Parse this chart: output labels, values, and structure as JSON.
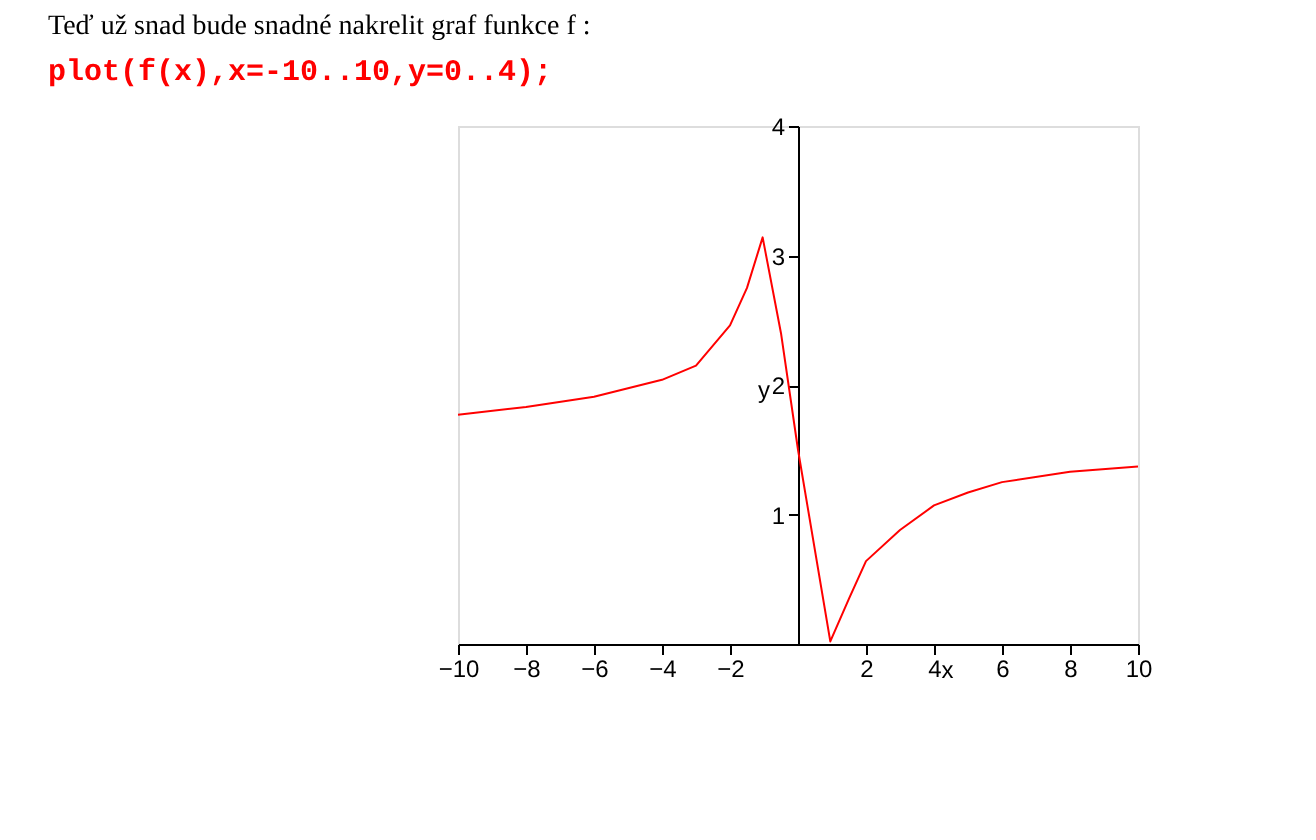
{
  "chart_data": {
    "type": "line",
    "title": "Teď už snad bude snadné nakrelit graf funkce f :",
    "subtitle": "plot(f(x),x=-10..10,y=0..4);",
    "xlabel": "x",
    "ylabel": "y",
    "series": [
      {
        "color": "#ff0000",
        "x": [
          -10,
          -8,
          -6,
          -4,
          -3,
          -2,
          -1.5,
          -1.04,
          -0.5,
          0,
          0.95,
          1.5,
          2,
          3,
          4,
          5,
          6,
          8,
          10
        ],
        "values": [
          1.77,
          1.83,
          1.91,
          2.04,
          2.15,
          2.46,
          2.75,
          3.14,
          2.4,
          1.5,
          0.02,
          0.35,
          0.64,
          0.88,
          1.07,
          1.17,
          1.25,
          1.33,
          1.37
        ]
      }
    ],
    "xlim": [
      -10,
      10
    ],
    "ylim": [
      0,
      4
    ],
    "xticks": [
      -10,
      -8,
      -6,
      -4,
      -2,
      2,
      4,
      6,
      8,
      10
    ],
    "yticks": [
      1,
      2,
      3,
      4
    ],
    "grid": false,
    "legend": false,
    "marker": "none",
    "line_style": "solid"
  }
}
